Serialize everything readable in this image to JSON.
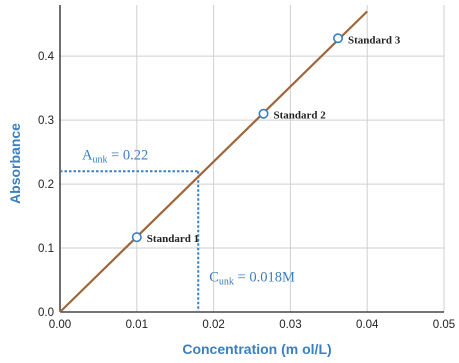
{
  "colors": {
    "line": "#a0663a",
    "accent": "#3a7fc0",
    "grid": "#cfcfcf",
    "axis": "#222222",
    "marker_fill": "#ffffff"
  },
  "chart_data": {
    "type": "line",
    "xlabel": "Concentration (m ol/L)",
    "ylabel": "Absorbance",
    "xlim": [
      0,
      0.05
    ],
    "ylim": [
      0,
      0.48
    ],
    "grid": true,
    "x_ticks": [
      0.0,
      0.01,
      0.02,
      0.03,
      0.04,
      0.05
    ],
    "x_tick_labels": [
      "0.00",
      "0.01",
      "0.02",
      "0.03",
      "0.04",
      "0.05"
    ],
    "y_ticks": [
      0.0,
      0.1,
      0.2,
      0.3,
      0.4
    ],
    "y_tick_labels": [
      "0.0",
      "0.1",
      "0.2",
      "0.3",
      "0.4"
    ],
    "calibration_line": {
      "x": [
        0.0,
        0.04
      ],
      "y": [
        0.0,
        0.47
      ]
    },
    "standards": [
      {
        "label": "Standard 1",
        "x": 0.01,
        "y": 0.117
      },
      {
        "label": "Standard 2",
        "x": 0.0265,
        "y": 0.31
      },
      {
        "label": "Standard 3",
        "x": 0.0362,
        "y": 0.428
      }
    ],
    "unknown": {
      "x": 0.018,
      "y": 0.22,
      "a_symbol": "A",
      "a_subscript": "unk",
      "a_value": " = 0.22",
      "c_symbol": "C",
      "c_subscript": "unk",
      "c_value": " = 0.018M"
    }
  }
}
